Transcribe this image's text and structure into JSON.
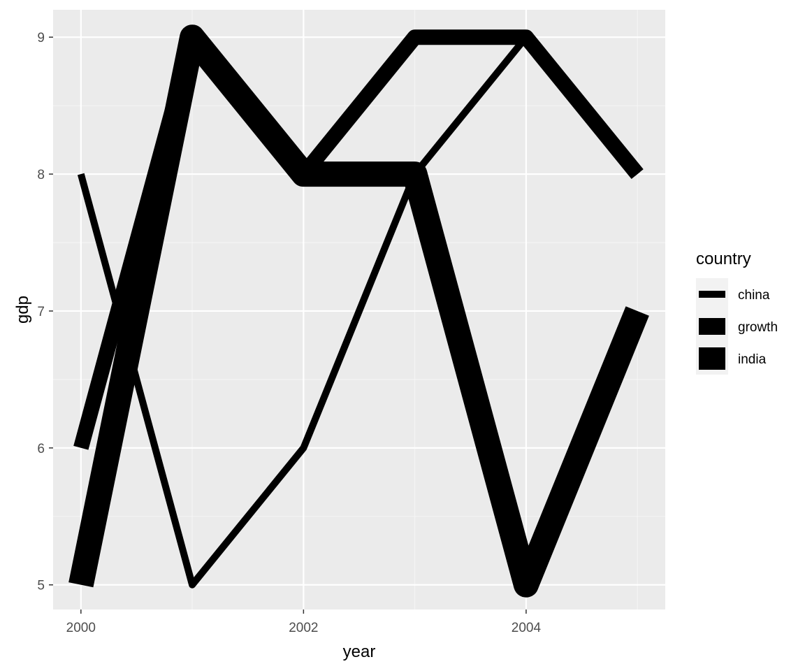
{
  "chart_data": {
    "type": "line",
    "title": "",
    "xlabel": "year",
    "ylabel": "gdp",
    "x": [
      2000,
      2001,
      2002,
      2003,
      2004,
      2005
    ],
    "xlim": [
      1999.75,
      2005.25
    ],
    "ylim": [
      4.82,
      9.2
    ],
    "xticks": [
      2000,
      2002,
      2004
    ],
    "yticks": [
      5,
      6,
      7,
      8,
      9
    ],
    "grid": true,
    "legend": {
      "title": "country",
      "position": "right"
    },
    "series": [
      {
        "name": "china",
        "values": [
          8,
          5,
          6,
          8,
          9,
          8
        ],
        "line_width_level": 1
      },
      {
        "name": "growth",
        "values": [
          6,
          9,
          8,
          9,
          9,
          8
        ],
        "line_width_level": 2
      },
      {
        "name": "india",
        "values": [
          5,
          9,
          8,
          8,
          5,
          7
        ],
        "line_width_level": 3
      }
    ],
    "colors": {
      "panel_background": "#EBEBEB",
      "grid_major": "#FFFFFF",
      "grid_minor": "#F5F5F5",
      "line": "#000000",
      "legend_key_background": "#F2F2F2",
      "tick_text": "#4D4D4D",
      "title_text": "#000000"
    }
  }
}
